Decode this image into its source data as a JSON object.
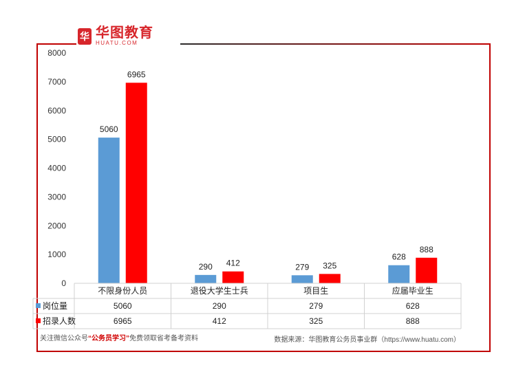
{
  "brand": {
    "logo_cn": "华图教育",
    "logo_en": "HUATU.COM",
    "logo_mark": "华"
  },
  "chart_data": {
    "type": "bar",
    "categories": [
      "不限身份人员",
      "退役大学生士兵",
      "项目生",
      "应届毕业生"
    ],
    "series": [
      {
        "name": "岗位量",
        "values": [
          5060,
          290,
          279,
          628
        ],
        "color": "#5b9bd5"
      },
      {
        "name": "招录人数",
        "values": [
          6965,
          412,
          325,
          888
        ],
        "color": "#ff0000"
      }
    ],
    "ylim": [
      0,
      8000
    ],
    "yticks": [
      0,
      1000,
      2000,
      3000,
      4000,
      5000,
      6000,
      7000,
      8000
    ],
    "data_table": true
  },
  "footer": {
    "left_prefix": "关注微信公众号",
    "left_highlight": "“公务员学习”",
    "left_suffix": "免费领取省考备考资料",
    "right": "数据来源：华图教育公务员事业群（https://www.huatu.com）"
  }
}
